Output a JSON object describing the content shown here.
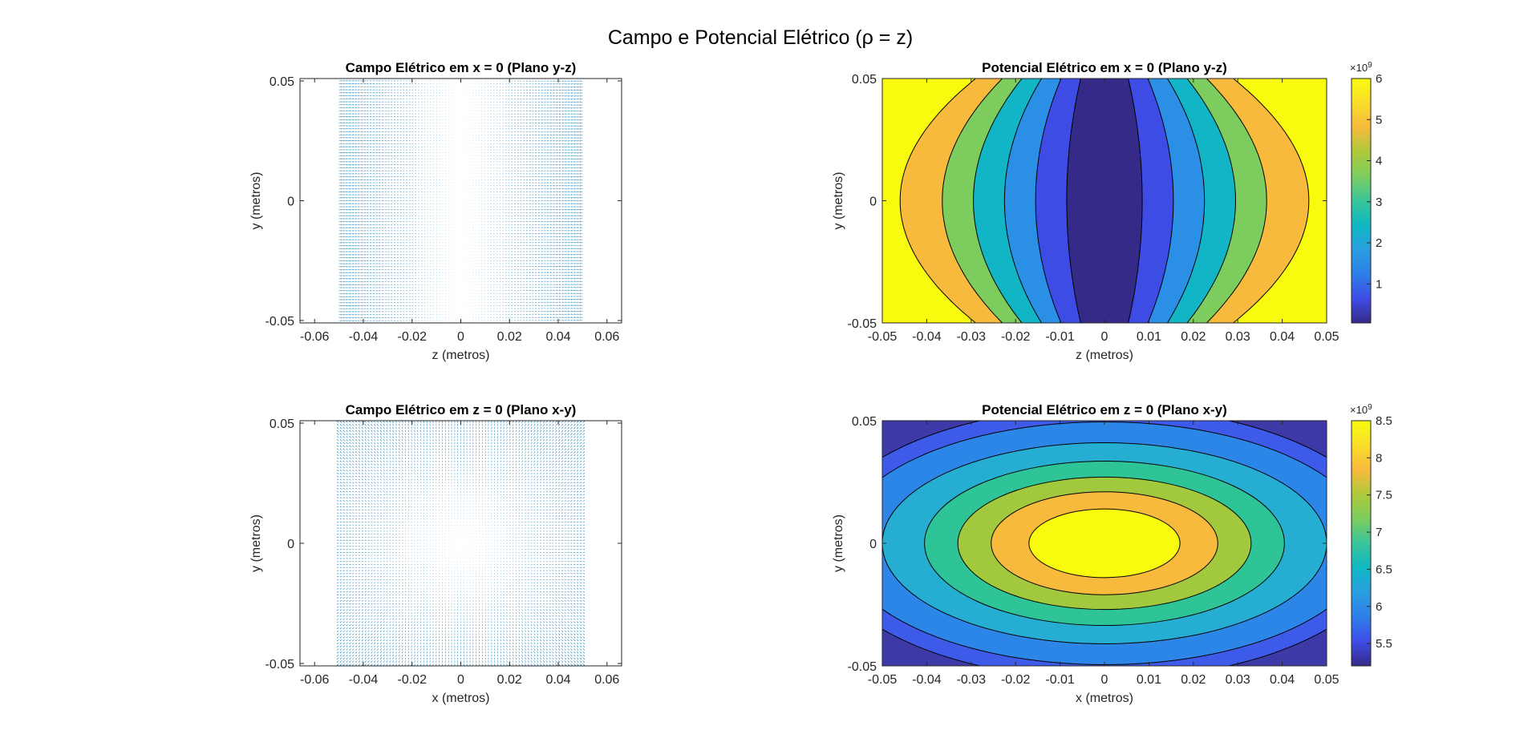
{
  "figure": {
    "title": "Campo e Potencial Elétrico (ρ = z)"
  },
  "colors": {
    "quiver": "#1a7db3",
    "axis": "#262626",
    "contour_line": "#000000",
    "parula": [
      "#352a87",
      "#3e4ce6",
      "#2e7fe8",
      "#2a9ee0",
      "#10b8c2",
      "#3ac59a",
      "#7ccd5e",
      "#aec93a",
      "#f8ba3d",
      "#f9dd2a",
      "#f9fb0e"
    ]
  },
  "chart_data": [
    {
      "id": "field-yz",
      "type": "quiver",
      "title": "Campo Elétrico em x = 0 (Plano y-z)",
      "xlabel": "z (metros)",
      "ylabel": "y (metros)",
      "xlim": [
        -0.066,
        0.066
      ],
      "ylim": [
        -0.051,
        0.051
      ],
      "xticks": [
        -0.06,
        -0.04,
        -0.02,
        0,
        0.02,
        0.04,
        0.06
      ],
      "xtick_labels": [
        "-0.06",
        "-0.04",
        "-0.02",
        "0",
        "0.02",
        "0.04",
        "0.06"
      ],
      "yticks": [
        -0.05,
        0,
        0.05
      ],
      "ytick_labels": [
        "-0.05",
        "0",
        "0.05"
      ],
      "grid_range": [
        -0.05,
        0.05
      ],
      "grid_n": 81,
      "field": "E ∝ (-z, -2zy) in (z, y) plane",
      "grid": false
    },
    {
      "id": "potential-yz",
      "type": "contourf",
      "title": "Potencial Elétrico em x = 0 (Plano y-z)",
      "xlabel": "z (metros)",
      "ylabel": "y (metros)",
      "xlim": [
        -0.05,
        0.05
      ],
      "ylim": [
        -0.05,
        0.05
      ],
      "xticks": [
        -0.05,
        -0.04,
        -0.03,
        -0.02,
        -0.01,
        0,
        0.01,
        0.02,
        0.03,
        0.04,
        0.05
      ],
      "xtick_labels": [
        "-0.05",
        "-0.04",
        "-0.03",
        "-0.02",
        "-0.01",
        "0",
        "0.01",
        "0.02",
        "0.03",
        "0.04",
        "0.05"
      ],
      "yticks": [
        -0.05,
        0,
        0.05
      ],
      "ytick_labels": [
        "-0.05",
        "0",
        "0.05"
      ],
      "levels": [
        0,
        600000000.0,
        1200000000.0,
        1800000000.0,
        2400000000.0,
        3000000000.0,
        3600000000.0,
        4200000000.0,
        4800000000.0,
        5400000000.0,
        6000000000.0
      ],
      "band_colors": [
        "#352a87",
        "#3e4ce6",
        "#2a8fe5",
        "#12b5c6",
        "#7ccd5e",
        "#f8ba3d",
        "#f9fb0e"
      ],
      "colorbar": {
        "range": [
          50000000.0,
          6000000000.0
        ],
        "ticks": [
          1000000000.0,
          2000000000.0,
          3000000000.0,
          4000000000.0,
          5000000000.0,
          6000000000.0
        ],
        "tick_labels": [
          "1",
          "2",
          "3",
          "4",
          "5",
          "6"
        ],
        "exponent_base": "×10",
        "exponent": "9"
      }
    },
    {
      "id": "field-xy",
      "type": "quiver",
      "title": "Campo Elétrico em z = 0 (Plano x-y)",
      "xlabel": "x (metros)",
      "ylabel": "y (metros)",
      "xlim": [
        -0.066,
        0.066
      ],
      "ylim": [
        -0.051,
        0.051
      ],
      "xticks": [
        -0.06,
        -0.04,
        -0.02,
        0,
        0.02,
        0.04,
        0.06
      ],
      "xtick_labels": [
        "-0.06",
        "-0.04",
        "-0.02",
        "0",
        "0.02",
        "0.04",
        "0.06"
      ],
      "yticks": [
        -0.05,
        0,
        0.05
      ],
      "ytick_labels": [
        "-0.05",
        "0",
        "0.05"
      ],
      "grid_range": [
        -0.05,
        0.05
      ],
      "grid_n": 81,
      "field": "radial, E ∝ (x, y)",
      "grid": false
    },
    {
      "id": "potential-xy",
      "type": "contourf",
      "title": "Potencial Elétrico em z = 0 (Plano x-y)",
      "xlabel": "x (metros)",
      "ylabel": "y (metros)",
      "xlim": [
        -0.05,
        0.05
      ],
      "ylim": [
        -0.05,
        0.05
      ],
      "xticks": [
        -0.05,
        -0.04,
        -0.03,
        -0.02,
        -0.01,
        0,
        0.01,
        0.02,
        0.03,
        0.04,
        0.05
      ],
      "xtick_labels": [
        "-0.05",
        "-0.04",
        "-0.03",
        "-0.02",
        "-0.01",
        "0",
        "0.01",
        "0.02",
        "0.03",
        "0.04",
        "0.05"
      ],
      "yticks": [
        -0.05,
        0,
        0.05
      ],
      "ytick_labels": [
        "-0.05",
        "0",
        "0.05"
      ],
      "band_colors": [
        "#3d3aa8",
        "#3e5ae9",
        "#2c86e8",
        "#25aed2",
        "#2fc497",
        "#a2c93e",
        "#f8ba3d",
        "#f9fb0e"
      ],
      "colorbar": {
        "range": [
          5200000000.0,
          8500000000.0
        ],
        "ticks": [
          5500000000.0,
          6000000000.0,
          6500000000.0,
          7000000000.0,
          7500000000.0,
          8000000000.0,
          8500000000.0
        ],
        "tick_labels": [
          "5.5",
          "6",
          "6.5",
          "7",
          "7.5",
          "8",
          "8.5"
        ],
        "exponent_base": "×10",
        "exponent": "9"
      }
    }
  ]
}
